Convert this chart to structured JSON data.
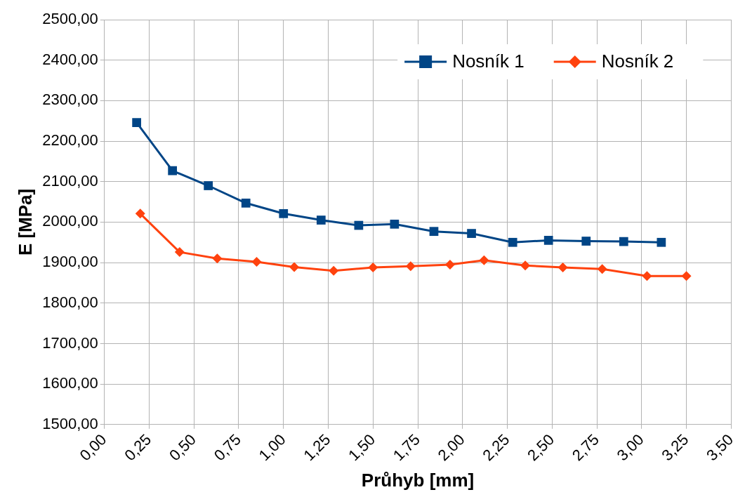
{
  "chart_data": {
    "type": "line",
    "xlabel": "Průhyb [mm]",
    "ylabel": "E [MPa]",
    "xlim": [
      0,
      3.5
    ],
    "xticks": [
      {
        "value": 0,
        "label": "0,00"
      },
      {
        "value": 0.25,
        "label": "0,25"
      },
      {
        "value": 0.5,
        "label": "0,50"
      },
      {
        "value": 0.75,
        "label": "0,75"
      },
      {
        "value": 1,
        "label": "1,00"
      },
      {
        "value": 1.25,
        "label": "1,25"
      },
      {
        "value": 1.5,
        "label": "1,50"
      },
      {
        "value": 1.75,
        "label": "1,75"
      },
      {
        "value": 2,
        "label": "2,00"
      },
      {
        "value": 2.25,
        "label": "2,25"
      },
      {
        "value": 2.5,
        "label": "2,50"
      },
      {
        "value": 2.75,
        "label": "2,75"
      },
      {
        "value": 3,
        "label": "3,00"
      },
      {
        "value": 3.25,
        "label": "3,25"
      },
      {
        "value": 3.5,
        "label": "3,50"
      }
    ],
    "ylim": [
      1500,
      2500
    ],
    "yticks": [
      {
        "value": 1500,
        "label": "1500,00"
      },
      {
        "value": 1600,
        "label": "1600,00"
      },
      {
        "value": 1700,
        "label": "1700,00"
      },
      {
        "value": 1800,
        "label": "1800,00"
      },
      {
        "value": 1900,
        "label": "1900,00"
      },
      {
        "value": 2000,
        "label": "2000,00"
      },
      {
        "value": 2100,
        "label": "2100,00"
      },
      {
        "value": 2200,
        "label": "2200,00"
      },
      {
        "value": 2300,
        "label": "2300,00"
      },
      {
        "value": 2400,
        "label": "2400,00"
      },
      {
        "value": 2500,
        "label": "2500,00"
      }
    ],
    "grid": true,
    "legend": "top right",
    "line_style": "solid",
    "series": [
      {
        "name": "Nosník 1",
        "color": "#004586",
        "marker": "square",
        "x": [
          0.18,
          0.38,
          0.58,
          0.79,
          1.0,
          1.21,
          1.42,
          1.62,
          1.84,
          2.05,
          2.28,
          2.48,
          2.69,
          2.9,
          3.11
        ],
        "values": [
          2246,
          2127,
          2090,
          2047,
          2021,
          2005,
          1992,
          1995,
          1977,
          1972,
          1950,
          1955,
          1953,
          1952,
          1950
        ]
      },
      {
        "name": "Nosník 2",
        "color": "#ff420e",
        "marker": "diamond",
        "x": [
          0.2,
          0.42,
          0.63,
          0.85,
          1.06,
          1.28,
          1.5,
          1.71,
          1.93,
          2.12,
          2.35,
          2.56,
          2.78,
          3.03,
          3.25
        ],
        "values": [
          2021,
          1926,
          1910,
          1902,
          1889,
          1880,
          1888,
          1891,
          1895,
          1906,
          1893,
          1888,
          1884,
          1867,
          1867
        ]
      }
    ]
  }
}
